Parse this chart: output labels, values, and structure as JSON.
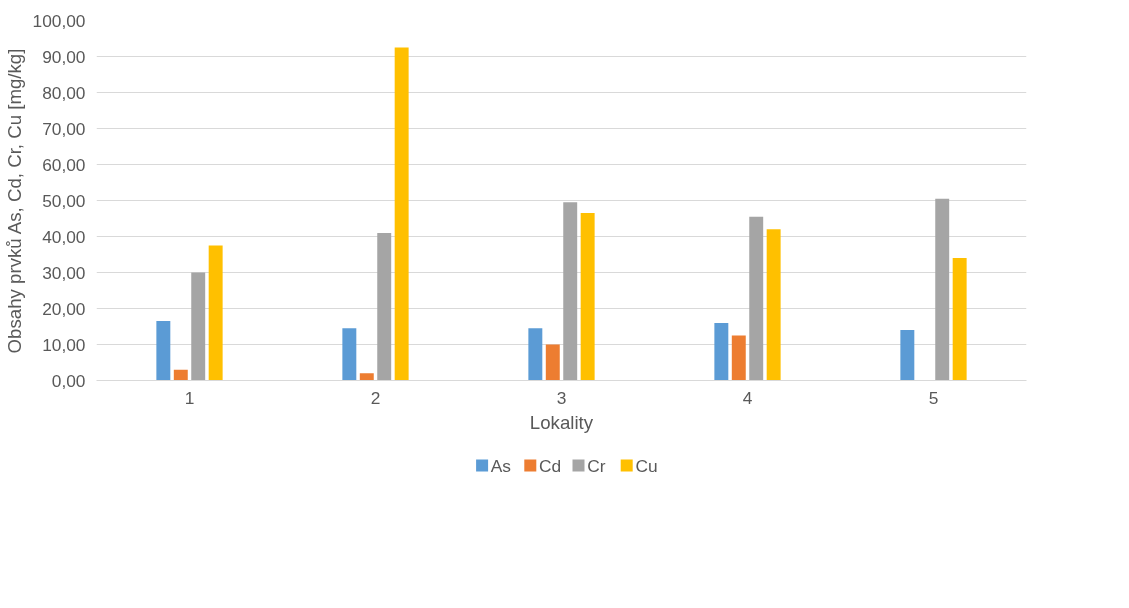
{
  "chart_data": {
    "type": "bar",
    "xlabel": "Lokality",
    "ylabel": "Obsahy prvků As, Cd, Cr, Cu [mg/kg]",
    "categories": [
      "1",
      "2",
      "3",
      "4",
      "5"
    ],
    "series": [
      {
        "name": "As",
        "color": "#5b9bd5",
        "values": [
          16.5,
          14.5,
          14.5,
          16,
          14
        ]
      },
      {
        "name": "Cd",
        "color": "#ed7d31",
        "values": [
          3,
          2,
          10,
          12.5,
          null
        ]
      },
      {
        "name": "Cr",
        "color": "#a5a5a5",
        "values": [
          30,
          41,
          49.5,
          45.5,
          50.5
        ]
      },
      {
        "name": "Cu",
        "color": "#ffc000",
        "values": [
          37.5,
          92.5,
          46.5,
          42,
          34
        ]
      }
    ],
    "ylim": [
      0,
      100
    ],
    "yticks": [
      {
        "value": 0,
        "label": "0,00"
      },
      {
        "value": 10,
        "label": "10,00"
      },
      {
        "value": 20,
        "label": "20,00"
      },
      {
        "value": 30,
        "label": "30,00"
      },
      {
        "value": 40,
        "label": "40,00"
      },
      {
        "value": 50,
        "label": "50,00"
      },
      {
        "value": 60,
        "label": "60,00"
      },
      {
        "value": 70,
        "label": "70,00"
      },
      {
        "value": 80,
        "label": "80,00"
      },
      {
        "value": 90,
        "label": "90,00"
      },
      {
        "value": 100,
        "label": "100,00"
      }
    ],
    "grid": "y",
    "legend": "bottom"
  }
}
